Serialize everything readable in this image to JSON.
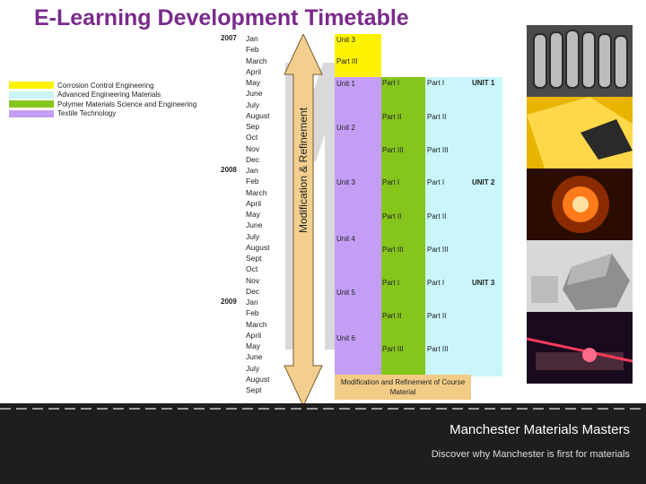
{
  "title": "E-Learning Development Timetable",
  "legend": [
    {
      "label": "Corrosion Control Engineering",
      "color": "#fff200"
    },
    {
      "label": "Advanced Engineering Materials",
      "color": "#c9f5fb"
    },
    {
      "label": "Polymer Materials Science and Engineering",
      "color": "#86c51c"
    },
    {
      "label": "Textile Technology",
      "color": "#c39ef4"
    }
  ],
  "years": [
    "2007",
    "2008",
    "2009"
  ],
  "months": [
    "Jan",
    "Feb",
    "March",
    "April",
    "May",
    "June",
    "July",
    "August",
    "Sep",
    "Oct",
    "Nov",
    "Dec",
    "Jan",
    "Feb",
    "March",
    "April",
    "May",
    "June",
    "July",
    "August",
    "Sept",
    "Oct",
    "Nov",
    "Dec",
    "Jan",
    "Feb",
    "March",
    "April",
    "May",
    "June",
    "July",
    "August",
    "Sept"
  ],
  "arrow_label": "Modification & Refinement",
  "yellow_column": [
    "Unit 3",
    "Part III"
  ],
  "purple_column": [
    "Unit 1",
    "Unit 2",
    "Unit 3",
    "Unit 4",
    "Unit 5",
    "Unit 6"
  ],
  "green_column": [
    "Part I",
    "Part II",
    "Part III",
    "Part I",
    "Part II",
    "Part III",
    "Part I",
    "Part II",
    "Part III"
  ],
  "cyan_column": [
    "Part I",
    "Part II",
    "Part III",
    "Part I",
    "Part II",
    "Part III",
    "Part I",
    "Part II",
    "Part III"
  ],
  "unit_labels": [
    "UNIT 1",
    "UNIT 2",
    "UNIT 3"
  ],
  "footer_note": "Modification and Refinement of Course Material",
  "brand": "Manchester Materials Masters",
  "tagline": "Discover why Manchester is first for materials",
  "photos": [
    "tube-bundle-photo",
    "yellow-fabric-photo",
    "furnace-glow-photo",
    "rock-sample-photo",
    "laser-lab-photo"
  ]
}
